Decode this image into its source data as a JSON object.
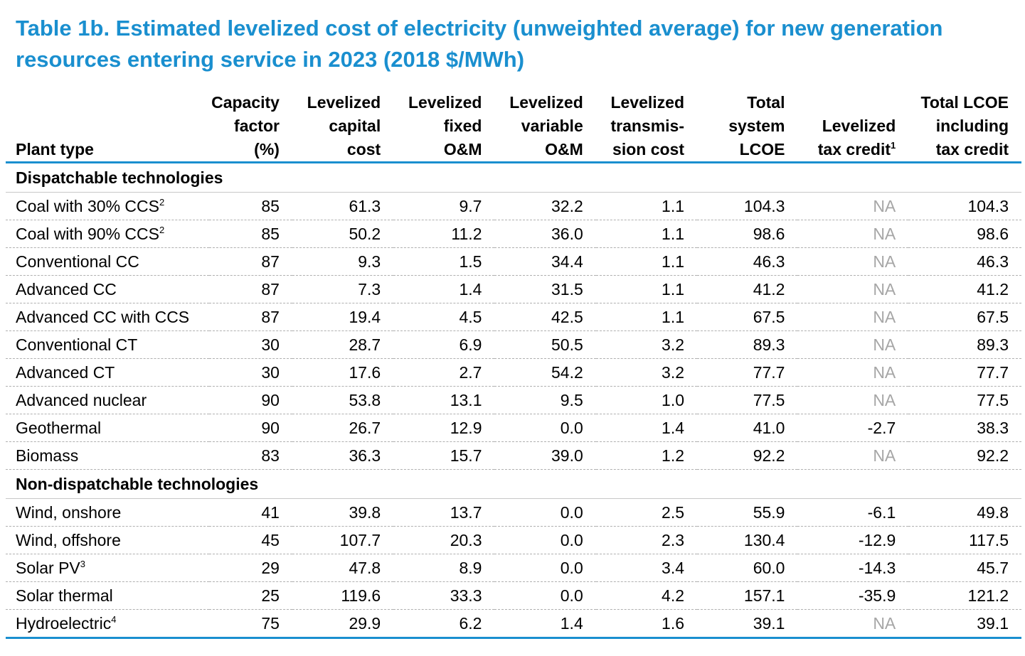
{
  "title": "Table 1b. Estimated levelized cost of electricity (unweighted average) for new generation resources entering service in 2023 (2018 $/MWh)",
  "accent_color": "#1a8fcf",
  "na_color": "#a6a6a6",
  "headers": {
    "plant_type": "Plant type",
    "capacity_factor": [
      "Capacity",
      "factor",
      "(%)"
    ],
    "levelized_capital_cost": [
      "Levelized",
      "capital",
      "cost"
    ],
    "levelized_fixed_om": [
      "Levelized",
      "fixed",
      "O&M"
    ],
    "levelized_variable_om": [
      "Levelized",
      "variable",
      "O&M"
    ],
    "levelized_transmission_cost": [
      "Levelized",
      "transmis-",
      "sion cost"
    ],
    "total_system_lcoe": [
      "Total",
      "system",
      "LCOE"
    ],
    "levelized_tax_credit": [
      "Levelized",
      "tax credit"
    ],
    "levelized_tax_credit_sup": "1",
    "total_lcoe_including_tax_credit": [
      "Total LCOE",
      "including",
      "tax credit"
    ]
  },
  "sections": [
    {
      "label": "Dispatchable technologies",
      "rows": [
        {
          "plant": "Coal with 30% CCS",
          "sup": "2",
          "values": [
            "85",
            "61.3",
            "9.7",
            "32.2",
            "1.1",
            "104.3",
            "NA",
            "104.3"
          ]
        },
        {
          "plant": "Coal with 90% CCS",
          "sup": "2",
          "values": [
            "85",
            "50.2",
            "11.2",
            "36.0",
            "1.1",
            "98.6",
            "NA",
            "98.6"
          ]
        },
        {
          "plant": "Conventional CC",
          "sup": "",
          "values": [
            "87",
            "9.3",
            "1.5",
            "34.4",
            "1.1",
            "46.3",
            "NA",
            "46.3"
          ]
        },
        {
          "plant": "Advanced CC",
          "sup": "",
          "values": [
            "87",
            "7.3",
            "1.4",
            "31.5",
            "1.1",
            "41.2",
            "NA",
            "41.2"
          ]
        },
        {
          "plant": "Advanced CC with CCS",
          "sup": "",
          "values": [
            "87",
            "19.4",
            "4.5",
            "42.5",
            "1.1",
            "67.5",
            "NA",
            "67.5"
          ]
        },
        {
          "plant": "Conventional CT",
          "sup": "",
          "values": [
            "30",
            "28.7",
            "6.9",
            "50.5",
            "3.2",
            "89.3",
            "NA",
            "89.3"
          ]
        },
        {
          "plant": "Advanced CT",
          "sup": "",
          "values": [
            "30",
            "17.6",
            "2.7",
            "54.2",
            "3.2",
            "77.7",
            "NA",
            "77.7"
          ]
        },
        {
          "plant": "Advanced nuclear",
          "sup": "",
          "values": [
            "90",
            "53.8",
            "13.1",
            "9.5",
            "1.0",
            "77.5",
            "NA",
            "77.5"
          ]
        },
        {
          "plant": "Geothermal",
          "sup": "",
          "values": [
            "90",
            "26.7",
            "12.9",
            "0.0",
            "1.4",
            "41.0",
            "-2.7",
            "38.3"
          ]
        },
        {
          "plant": "Biomass",
          "sup": "",
          "values": [
            "83",
            "36.3",
            "15.7",
            "39.0",
            "1.2",
            "92.2",
            "NA",
            "92.2"
          ]
        }
      ]
    },
    {
      "label": "Non-dispatchable technologies",
      "rows": [
        {
          "plant": "Wind, onshore",
          "sup": "",
          "values": [
            "41",
            "39.8",
            "13.7",
            "0.0",
            "2.5",
            "55.9",
            "-6.1",
            "49.8"
          ]
        },
        {
          "plant": "Wind, offshore",
          "sup": "",
          "values": [
            "45",
            "107.7",
            "20.3",
            "0.0",
            "2.3",
            "130.4",
            "-12.9",
            "117.5"
          ]
        },
        {
          "plant": "Solar PV",
          "sup": "3",
          "values": [
            "29",
            "47.8",
            "8.9",
            "0.0",
            "3.4",
            "60.0",
            "-14.3",
            "45.7"
          ]
        },
        {
          "plant": "Solar thermal",
          "sup": "",
          "values": [
            "25",
            "119.6",
            "33.3",
            "0.0",
            "4.2",
            "157.1",
            "-35.9",
            "121.2"
          ]
        },
        {
          "plant": "Hydroelectric",
          "sup": "4",
          "values": [
            "75",
            "29.9",
            "6.2",
            "1.4",
            "1.6",
            "39.1",
            "NA",
            "39.1"
          ]
        }
      ]
    }
  ]
}
